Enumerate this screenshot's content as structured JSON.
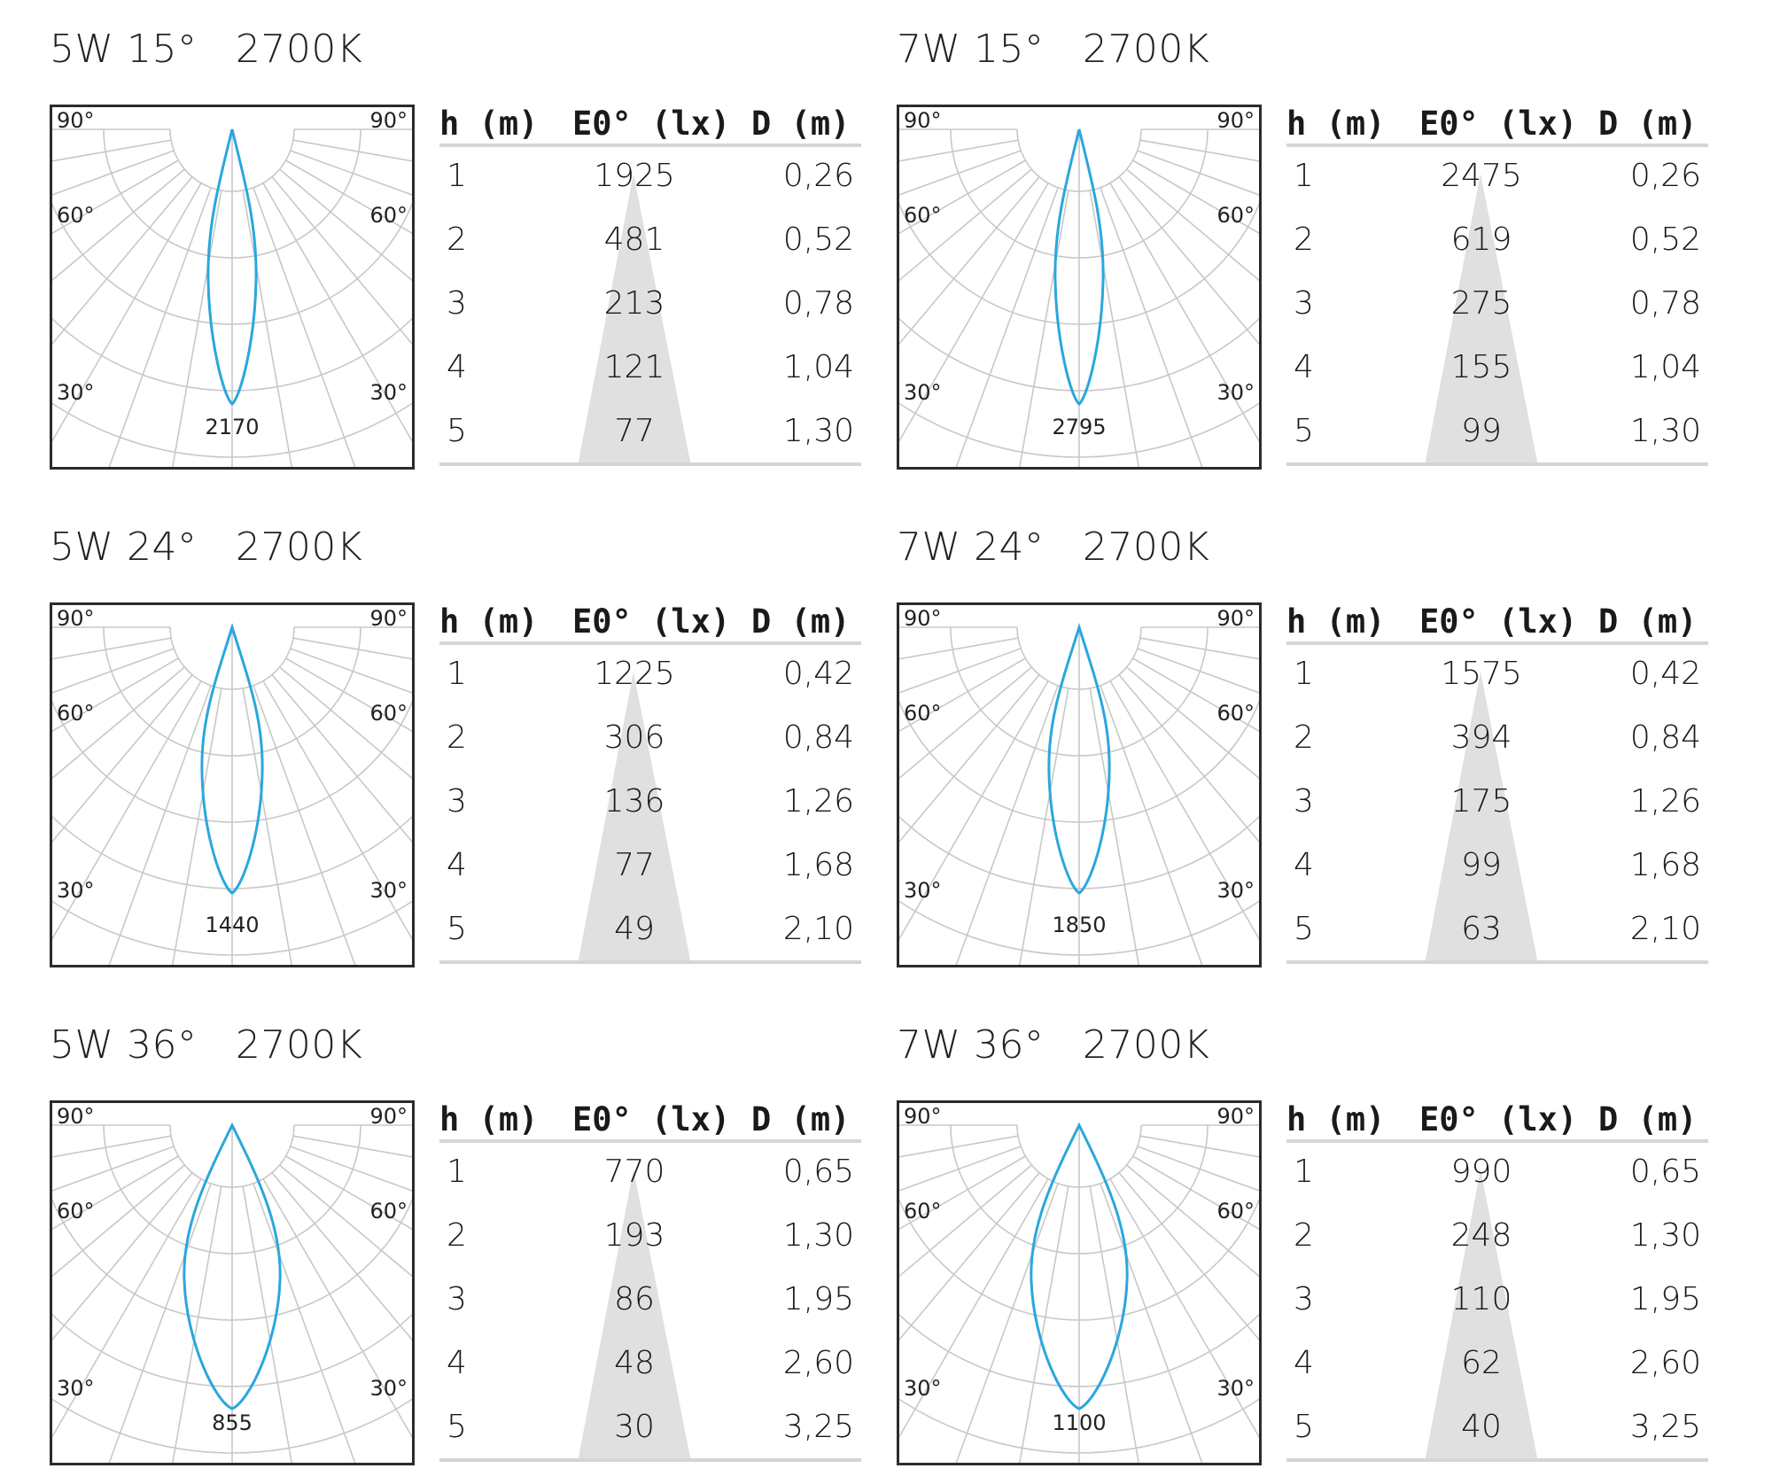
{
  "headers": {
    "h": "h (m)",
    "e": "E0° (lx)",
    "d": "D (m)"
  },
  "angle_labels": {
    "a90": "90°",
    "a60": "60°",
    "a30": "30°"
  },
  "colors": {
    "curve": "#2aa7dd",
    "grid": "#c8c8c8",
    "cone": "#e0e0e0",
    "border": "#2b2b2b"
  },
  "panels": [
    {
      "title": "5W 15°   2700K",
      "peak": "2170",
      "beam_angle_deg": 15,
      "rows": [
        {
          "h": "1",
          "e": "1925",
          "d": "0,26"
        },
        {
          "h": "2",
          "e": "481",
          "d": "0,52"
        },
        {
          "h": "3",
          "e": "213",
          "d": "0,78"
        },
        {
          "h": "4",
          "e": "121",
          "d": "1,04"
        },
        {
          "h": "5",
          "e": "77",
          "d": "1,30"
        }
      ]
    },
    {
      "title": "7W 15°   2700K",
      "peak": "2795",
      "beam_angle_deg": 15,
      "rows": [
        {
          "h": "1",
          "e": "2475",
          "d": "0,26"
        },
        {
          "h": "2",
          "e": "619",
          "d": "0,52"
        },
        {
          "h": "3",
          "e": "275",
          "d": "0,78"
        },
        {
          "h": "4",
          "e": "155",
          "d": "1,04"
        },
        {
          "h": "5",
          "e": "99",
          "d": "1,30"
        }
      ]
    },
    {
      "title": "5W 24°   2700K",
      "peak": "1440",
      "beam_angle_deg": 24,
      "rows": [
        {
          "h": "1",
          "e": "1225",
          "d": "0,42"
        },
        {
          "h": "2",
          "e": "306",
          "d": "0,84"
        },
        {
          "h": "3",
          "e": "136",
          "d": "1,26"
        },
        {
          "h": "4",
          "e": "77",
          "d": "1,68"
        },
        {
          "h": "5",
          "e": "49",
          "d": "2,10"
        }
      ]
    },
    {
      "title": "7W 24°   2700K",
      "peak": "1850",
      "beam_angle_deg": 24,
      "rows": [
        {
          "h": "1",
          "e": "1575",
          "d": "0,42"
        },
        {
          "h": "2",
          "e": "394",
          "d": "0,84"
        },
        {
          "h": "3",
          "e": "175",
          "d": "1,26"
        },
        {
          "h": "4",
          "e": "99",
          "d": "1,68"
        },
        {
          "h": "5",
          "e": "63",
          "d": "2,10"
        }
      ]
    },
    {
      "title": "5W 36°   2700K",
      "peak": "855",
      "beam_angle_deg": 36,
      "rows": [
        {
          "h": "1",
          "e": "770",
          "d": "0,65"
        },
        {
          "h": "2",
          "e": "193",
          "d": "1,30"
        },
        {
          "h": "3",
          "e": "86",
          "d": "1,95"
        },
        {
          "h": "4",
          "e": "48",
          "d": "2,60"
        },
        {
          "h": "5",
          "e": "30",
          "d": "3,25"
        }
      ]
    },
    {
      "title": "7W 36°   2700K",
      "peak": "1100",
      "beam_angle_deg": 36,
      "rows": [
        {
          "h": "1",
          "e": "990",
          "d": "0,65"
        },
        {
          "h": "2",
          "e": "248",
          "d": "1,30"
        },
        {
          "h": "3",
          "e": "110",
          "d": "1,95"
        },
        {
          "h": "4",
          "e": "62",
          "d": "2,60"
        },
        {
          "h": "5",
          "e": "40",
          "d": "3,25"
        }
      ]
    }
  ]
}
